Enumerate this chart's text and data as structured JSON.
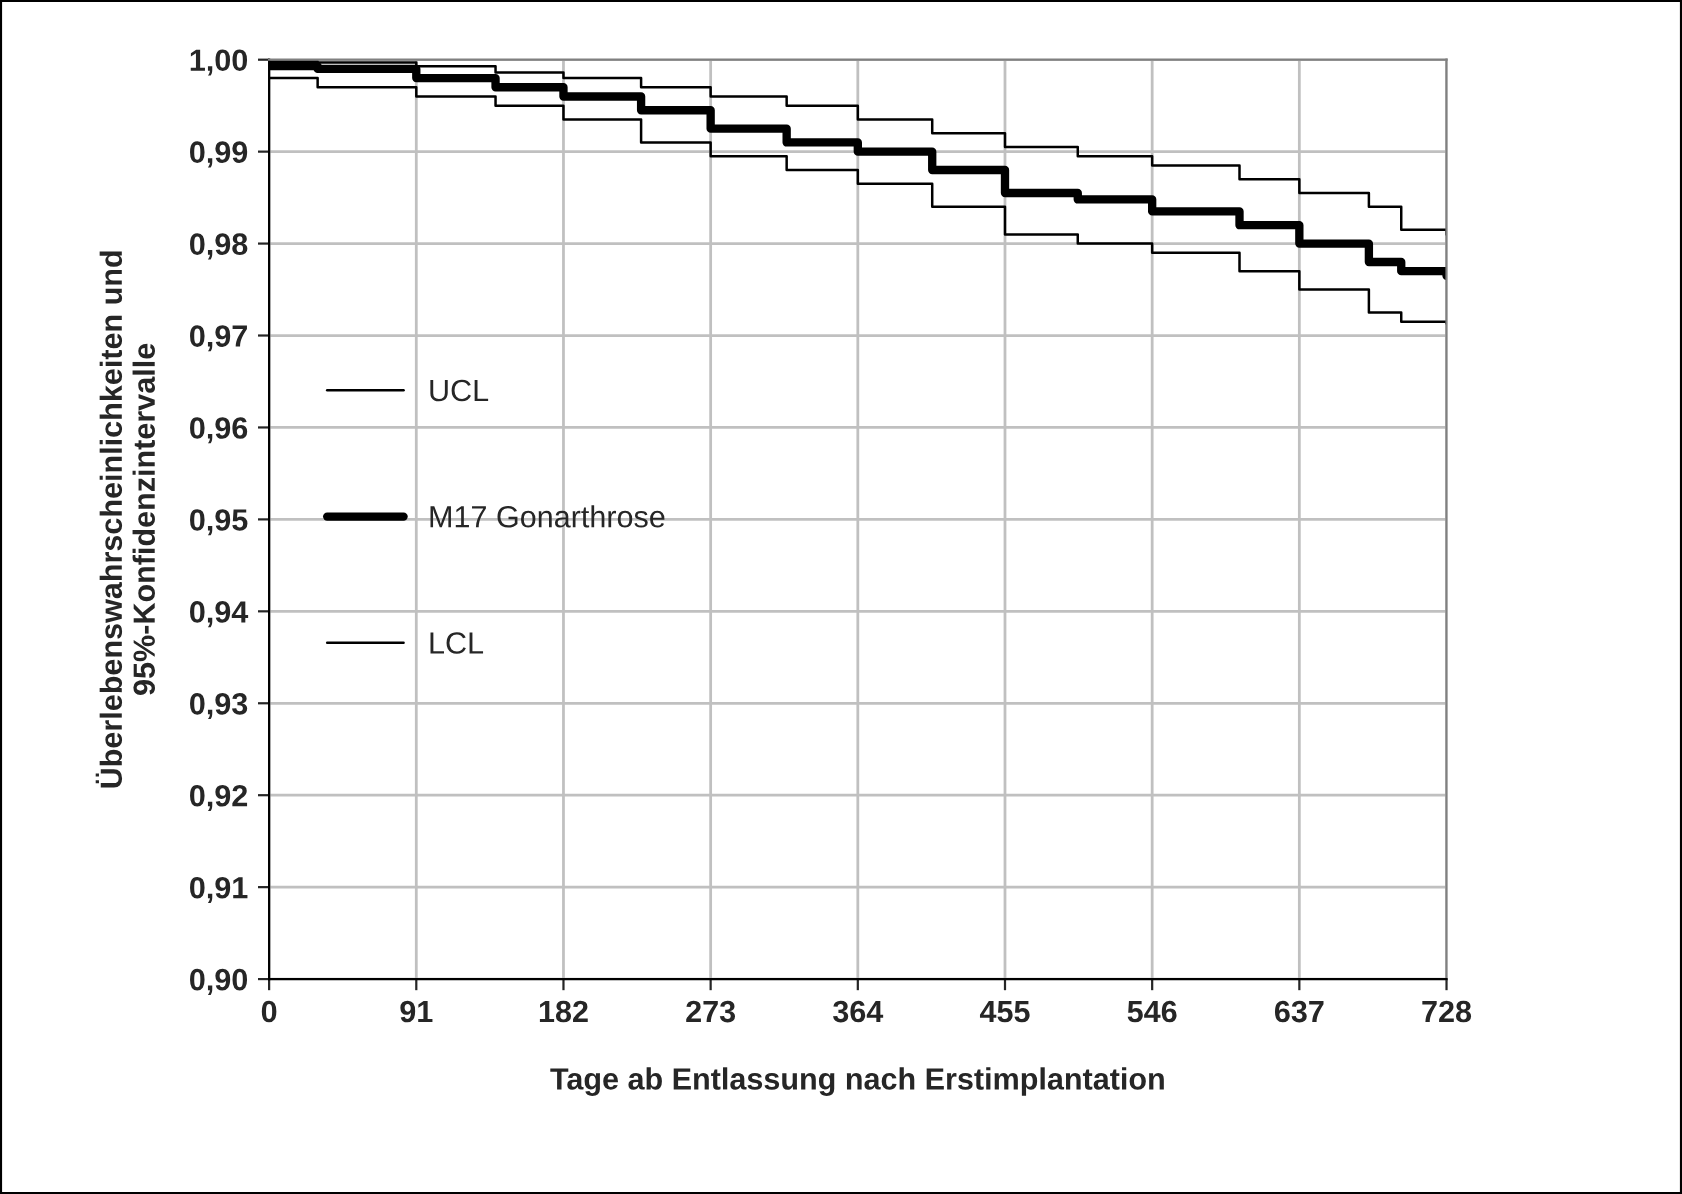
{
  "chart_data": {
    "type": "step",
    "xlabel": "Tage ab Entlassung nach Erstimplantation",
    "ylabel": "Überlebenswahrscheinlichkeiten und\n95%-Konfidenzintervalle",
    "xlim": [
      0,
      728
    ],
    "xticks": [
      0,
      91,
      182,
      273,
      364,
      455,
      546,
      637,
      728
    ],
    "ylim": [
      0.9,
      1.0
    ],
    "yticks": [
      {
        "value": 0.9,
        "label": "0,90"
      },
      {
        "value": 0.91,
        "label": "0,91"
      },
      {
        "value": 0.92,
        "label": "0,92"
      },
      {
        "value": 0.93,
        "label": "0,93"
      },
      {
        "value": 0.94,
        "label": "0,94"
      },
      {
        "value": 0.95,
        "label": "0,95"
      },
      {
        "value": 0.96,
        "label": "0,96"
      },
      {
        "value": 0.97,
        "label": "0,97"
      },
      {
        "value": 0.98,
        "label": "0,98"
      },
      {
        "value": 0.99,
        "label": "0,99"
      },
      {
        "value": 1.0,
        "label": "1,00"
      }
    ],
    "grid": true,
    "legend": "center left",
    "line_style": "solid",
    "marker": "none",
    "series": [
      {
        "name": "UCL",
        "color": "#000000",
        "x": [
          0,
          30,
          91,
          140,
          182,
          230,
          273,
          320,
          364,
          410,
          455,
          500,
          546,
          600,
          637,
          680,
          700,
          728
        ],
        "values": [
          0.9998,
          0.9997,
          0.9993,
          0.9986,
          0.998,
          0.997,
          0.996,
          0.995,
          0.9935,
          0.992,
          0.9905,
          0.9895,
          0.9885,
          0.987,
          0.9855,
          0.984,
          0.9815,
          0.981
        ]
      },
      {
        "name": "M17 Gonarthrose",
        "color": "#000000",
        "x": [
          0,
          30,
          91,
          140,
          182,
          230,
          273,
          320,
          364,
          410,
          455,
          500,
          546,
          600,
          637,
          680,
          700,
          728
        ],
        "values": [
          0.9993,
          0.999,
          0.998,
          0.997,
          0.996,
          0.9945,
          0.9925,
          0.991,
          0.99,
          0.988,
          0.9855,
          0.9848,
          0.9835,
          0.982,
          0.98,
          0.978,
          0.977,
          0.9765
        ]
      },
      {
        "name": "LCL",
        "color": "#000000",
        "x": [
          0,
          30,
          91,
          140,
          182,
          230,
          273,
          320,
          364,
          410,
          455,
          500,
          546,
          600,
          637,
          680,
          700,
          728
        ],
        "values": [
          0.998,
          0.997,
          0.996,
          0.995,
          0.9935,
          0.991,
          0.9895,
          0.988,
          0.9865,
          0.984,
          0.981,
          0.98,
          0.979,
          0.977,
          0.975,
          0.9725,
          0.9715,
          0.9713
        ]
      }
    ]
  }
}
